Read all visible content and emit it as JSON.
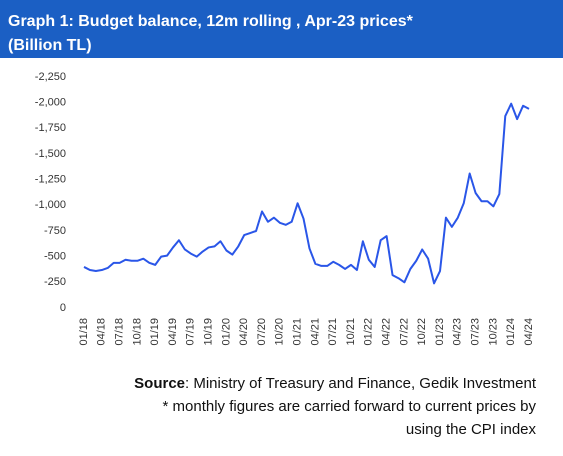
{
  "chart_data": {
    "type": "line",
    "title": "Graph 1: Budget balance, 12m rolling , Apr-23 prices*",
    "subtitle": "(Billion TL)",
    "categories": [
      "01/18",
      null,
      null,
      "04/18",
      null,
      null,
      "07/18",
      null,
      null,
      "10/18",
      null,
      null,
      "01/19",
      null,
      null,
      "04/19",
      null,
      null,
      "07/19",
      null,
      null,
      "10/19",
      null,
      null,
      "01/20",
      null,
      null,
      "04/20",
      null,
      null,
      "07/20",
      null,
      null,
      "10/20",
      null,
      null,
      "01/21",
      null,
      null,
      "04/21",
      null,
      null,
      "07/21",
      null,
      null,
      "10/21",
      null,
      null,
      "01/22",
      null,
      null,
      "04/22",
      null,
      null,
      "07/22",
      null,
      null,
      "10/22",
      null,
      null,
      "01/23",
      null,
      null,
      "04/23",
      null,
      null,
      "07/23",
      null,
      null,
      "10/23",
      null,
      null,
      "01/24",
      null,
      null,
      "04/24"
    ],
    "values": [
      -400,
      -370,
      -360,
      -370,
      -390,
      -440,
      -440,
      -470,
      -460,
      -460,
      -480,
      -440,
      -420,
      -500,
      -510,
      -590,
      -660,
      -570,
      -530,
      -500,
      -550,
      -590,
      -600,
      -650,
      -560,
      -520,
      -600,
      -710,
      -730,
      -750,
      -940,
      -840,
      -880,
      -830,
      -810,
      -840,
      -1020,
      -870,
      -580,
      -430,
      -410,
      -410,
      -450,
      -420,
      -380,
      -420,
      -370,
      -650,
      -470,
      -400,
      -660,
      -700,
      -320,
      -290,
      -250,
      -380,
      -460,
      -570,
      -480,
      -240,
      -360,
      -880,
      -790,
      -880,
      -1020,
      -1310,
      -1120,
      -1040,
      -1040,
      -990,
      -1110,
      -1870,
      -1990,
      -1840,
      -1970,
      -1940
    ],
    "color": "#2a56e8",
    "ylim": [
      0,
      -2250
    ],
    "yticks": [
      0,
      {
        "value": -250,
        "label": "-250"
      },
      {
        "value": -500,
        "label": "-500"
      },
      {
        "value": -750,
        "label": "-750"
      },
      {
        "value": -1000,
        "label": "-1,000"
      },
      {
        "value": -1250,
        "label": "-1,250"
      },
      {
        "value": -1500,
        "label": "-1,500"
      },
      {
        "value": -1750,
        "label": "-1,750"
      },
      {
        "value": -2000,
        "label": "-2,000"
      },
      {
        "value": -2250,
        "label": "-2,250"
      }
    ],
    "grid": false,
    "source_label": "Source",
    "source": ": Ministry of Treasury and Finance, Gedik Investment",
    "note": [
      "* monthly figures are carried forward to current prices by",
      "using the CPI index"
    ]
  }
}
